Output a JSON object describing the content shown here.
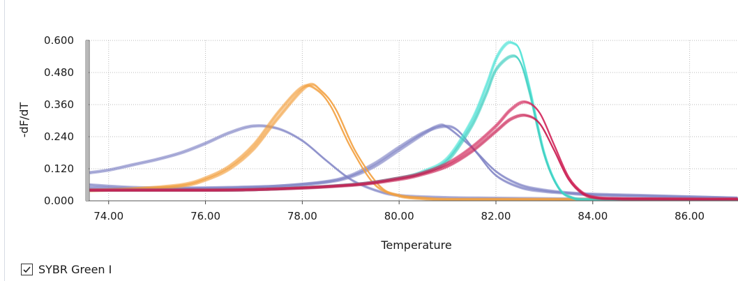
{
  "chart_data": {
    "type": "line",
    "xlabel": "Temperature",
    "ylabel": "-dF/dT",
    "xlim": [
      73.6,
      87.0
    ],
    "ylim": [
      0.0,
      0.6
    ],
    "x_ticks": [
      "74.00",
      "76.00",
      "78.00",
      "80.00",
      "82.00",
      "84.00",
      "86.00"
    ],
    "y_ticks": [
      "0.000",
      "0.120",
      "0.240",
      "0.360",
      "0.480",
      "0.600"
    ],
    "grid": true,
    "legend_position": "bottom-left",
    "series": [
      {
        "color": "#8084c4",
        "x": [
          73.6,
          74.0,
          74.5,
          75.0,
          75.5,
          76.0,
          76.5,
          77.0,
          77.5,
          78.0,
          78.5,
          79.0,
          79.5,
          80.0,
          81.0,
          82.0,
          83.0,
          84.0,
          85.0,
          86.0,
          87.0
        ],
        "y": [
          0.105,
          0.115,
          0.135,
          0.155,
          0.18,
          0.215,
          0.255,
          0.28,
          0.27,
          0.225,
          0.15,
          0.08,
          0.04,
          0.02,
          0.012,
          0.01,
          0.008,
          0.006,
          0.005,
          0.005,
          0.005
        ]
      },
      {
        "color": "#8084c4",
        "x": [
          73.6,
          74.5,
          75.5,
          76.5,
          77.5,
          78.5,
          79.0,
          79.5,
          80.0,
          80.5,
          80.8,
          81.0,
          81.5,
          82.0,
          82.5,
          83.0,
          83.5,
          84.0,
          85.0,
          86.0,
          87.0
        ],
        "y": [
          0.06,
          0.05,
          0.048,
          0.05,
          0.055,
          0.07,
          0.09,
          0.13,
          0.19,
          0.25,
          0.28,
          0.275,
          0.2,
          0.11,
          0.06,
          0.04,
          0.03,
          0.025,
          0.02,
          0.015,
          0.01
        ]
      },
      {
        "color": "#8084c4",
        "x": [
          73.6,
          74.5,
          75.5,
          76.5,
          77.5,
          78.5,
          79.0,
          79.5,
          80.0,
          80.5,
          80.9,
          81.2,
          81.6,
          82.0,
          82.5,
          83.0,
          83.5,
          84.0,
          85.0,
          86.0,
          87.0
        ],
        "y": [
          0.05,
          0.045,
          0.045,
          0.048,
          0.055,
          0.072,
          0.095,
          0.14,
          0.2,
          0.255,
          0.278,
          0.265,
          0.18,
          0.095,
          0.05,
          0.035,
          0.028,
          0.022,
          0.018,
          0.014,
          0.01
        ]
      },
      {
        "color": "#f3a13f",
        "x": [
          73.6,
          74.5,
          75.5,
          76.0,
          76.5,
          77.0,
          77.5,
          78.0,
          78.3,
          78.6,
          79.0,
          79.5,
          80.0,
          80.5,
          81.0,
          82.0,
          84.0,
          87.0
        ],
        "y": [
          0.04,
          0.045,
          0.06,
          0.085,
          0.13,
          0.21,
          0.33,
          0.425,
          0.415,
          0.35,
          0.2,
          0.06,
          0.02,
          0.01,
          0.005,
          0.005,
          0.005,
          0.005
        ]
      },
      {
        "color": "#f3a13f",
        "x": [
          73.6,
          74.5,
          75.5,
          76.0,
          76.5,
          77.0,
          77.5,
          78.1,
          78.4,
          78.7,
          79.1,
          79.6,
          80.0,
          80.5,
          81.0,
          82.0,
          84.0,
          87.0
        ],
        "y": [
          0.038,
          0.043,
          0.055,
          0.078,
          0.12,
          0.195,
          0.31,
          0.43,
          0.41,
          0.34,
          0.185,
          0.055,
          0.018,
          0.008,
          0.005,
          0.005,
          0.005,
          0.005
        ]
      },
      {
        "color": "#49e2d6",
        "x": [
          73.6,
          75.0,
          77.0,
          79.0,
          80.0,
          80.5,
          81.0,
          81.5,
          81.8,
          82.0,
          82.2,
          82.35,
          82.5,
          82.7,
          83.0,
          83.3,
          83.6,
          84.0,
          85.0,
          87.0
        ],
        "y": [
          0.04,
          0.04,
          0.042,
          0.06,
          0.085,
          0.11,
          0.16,
          0.3,
          0.43,
          0.53,
          0.585,
          0.59,
          0.56,
          0.42,
          0.18,
          0.05,
          0.01,
          0.004,
          0.003,
          0.003
        ]
      },
      {
        "color": "#3ccdc0",
        "x": [
          73.6,
          75.0,
          77.0,
          79.0,
          80.0,
          80.5,
          81.0,
          81.5,
          81.8,
          82.0,
          82.3,
          82.5,
          82.7,
          83.0,
          83.3,
          83.6,
          84.0,
          85.0,
          87.0
        ],
        "y": [
          0.04,
          0.04,
          0.042,
          0.06,
          0.085,
          0.105,
          0.15,
          0.28,
          0.4,
          0.49,
          0.54,
          0.52,
          0.4,
          0.17,
          0.045,
          0.01,
          0.004,
          0.003,
          0.003
        ]
      },
      {
        "color": "#d2245a",
        "x": [
          73.6,
          75.0,
          77.0,
          79.0,
          80.0,
          80.5,
          81.0,
          81.5,
          82.0,
          82.3,
          82.6,
          82.9,
          83.2,
          83.5,
          83.8,
          84.1,
          84.5,
          85.0,
          86.0,
          87.0
        ],
        "y": [
          0.04,
          0.04,
          0.042,
          0.06,
          0.085,
          0.105,
          0.14,
          0.2,
          0.28,
          0.34,
          0.37,
          0.33,
          0.21,
          0.09,
          0.03,
          0.012,
          0.008,
          0.007,
          0.006,
          0.006
        ]
      },
      {
        "color": "#c8194f",
        "x": [
          73.6,
          75.0,
          77.0,
          79.0,
          80.0,
          80.5,
          81.0,
          81.5,
          82.0,
          82.3,
          82.6,
          82.9,
          83.2,
          83.5,
          83.8,
          84.1,
          84.5,
          85.0,
          86.0,
          87.0
        ],
        "y": [
          0.04,
          0.04,
          0.042,
          0.058,
          0.08,
          0.1,
          0.13,
          0.185,
          0.26,
          0.305,
          0.32,
          0.29,
          0.19,
          0.08,
          0.025,
          0.01,
          0.008,
          0.007,
          0.006,
          0.006
        ]
      }
    ]
  },
  "legend": {
    "label": "SYBR Green I",
    "checked": true
  }
}
